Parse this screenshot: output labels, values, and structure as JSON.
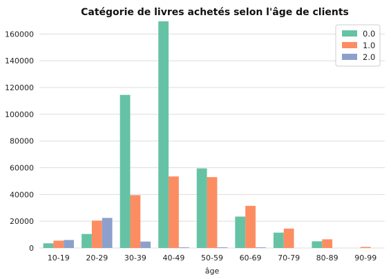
{
  "chart_data": {
    "type": "bar",
    "title": "Catégorie de livres achetés selon l'âge de clients",
    "xlabel": "âge",
    "ylabel": "",
    "categories": [
      "10-19",
      "20-29",
      "30-39",
      "40-49",
      "50-59",
      "60-69",
      "70-79",
      "80-89",
      "90-99"
    ],
    "series": [
      {
        "name": "0.0",
        "color": "#66c2a5",
        "values": [
          3500,
          10500,
          114500,
          169500,
          59500,
          23500,
          11500,
          5000,
          0
        ]
      },
      {
        "name": "1.0",
        "color": "#fc8d62",
        "values": [
          5500,
          20500,
          39500,
          53500,
          53000,
          31500,
          14500,
          6500,
          800
        ]
      },
      {
        "name": "2.0",
        "color": "#8da0cb",
        "values": [
          6000,
          22500,
          4800,
          500,
          500,
          500,
          0,
          0,
          0
        ]
      }
    ],
    "ylim": [
      0,
      170000
    ],
    "yticks": [
      0,
      20000,
      40000,
      60000,
      80000,
      100000,
      120000,
      140000,
      160000
    ],
    "grid": "horizontal",
    "legend_position": "top-right"
  }
}
